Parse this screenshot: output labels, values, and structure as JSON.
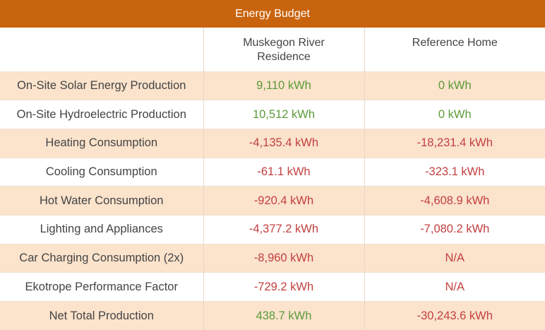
{
  "title": "Energy Budget",
  "columns": {
    "col1": "",
    "col2_line1": "Muskegon River",
    "col2_line2": "Residence",
    "col3": "Reference Home"
  },
  "colors": {
    "header_bg": "#c9640e",
    "stripe": "#fbe3cc",
    "positive": "#5c9a3a",
    "negative": "#c24040"
  },
  "rows": [
    {
      "label": "On-Site Solar Energy Production",
      "residence": "9,110 kWh",
      "reference": "0 kWh"
    },
    {
      "label": "On-Site Hydroelectric Production",
      "residence": "10,512 kWh",
      "reference": "0 kWh"
    },
    {
      "label": "Heating Consumption",
      "residence": "-4,135.4 kWh",
      "reference": "-18,231.4 kWh"
    },
    {
      "label": "Cooling Consumption",
      "residence": "-61.1 kWh",
      "reference": "-323.1 kWh"
    },
    {
      "label": "Hot Water Consumption",
      "residence": "-920.4 kWh",
      "reference": "-4,608.9 kWh"
    },
    {
      "label": "Lighting and Appliances",
      "residence": "-4,377.2 kWh",
      "reference": "-7,080.2 kWh"
    },
    {
      "label": "Car Charging Consumption (2x)",
      "residence": "-8,960 kWh",
      "reference": "N/A"
    },
    {
      "label": "Ekotrope Performance Factor",
      "residence": "-729.2 kWh",
      "reference": "N/A"
    },
    {
      "label": "Net Total Production",
      "residence": "438.7 kWh",
      "reference": "-30,243.6 kWh"
    }
  ]
}
